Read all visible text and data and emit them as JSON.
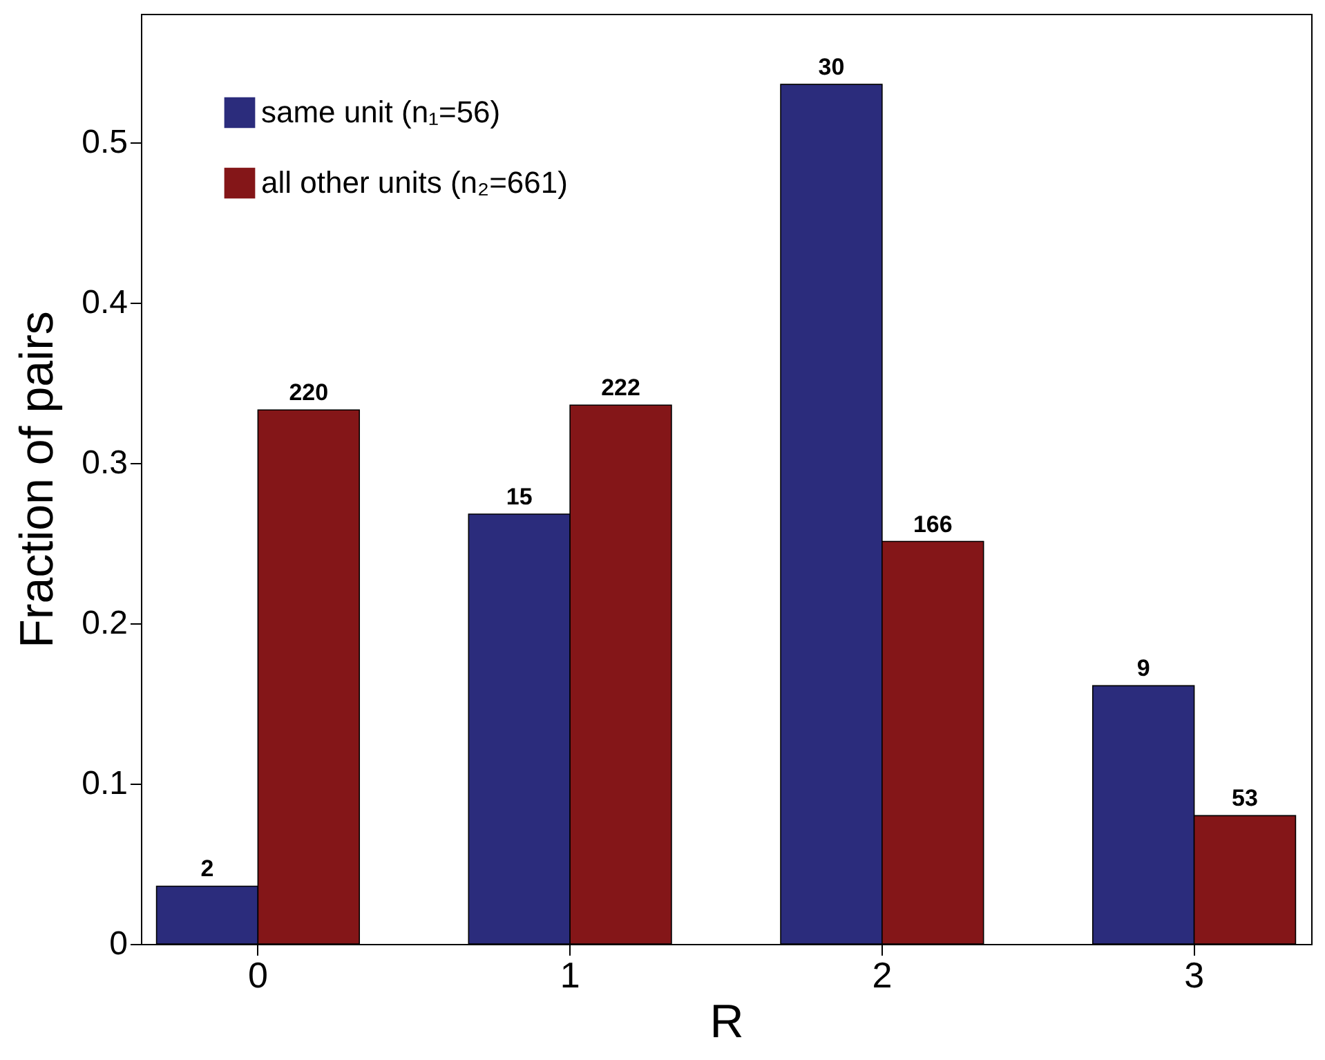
{
  "chart_data": {
    "type": "bar",
    "xlabel": "R",
    "ylabel": "Fraction of pairs",
    "categories": [
      "0",
      "1",
      "2",
      "3"
    ],
    "series": [
      {
        "name": "same unit (n₁=56)",
        "color": "#2b2c7c",
        "values": [
          0.036,
          0.268,
          0.536,
          0.161
        ]
      },
      {
        "name": "all other units (n₂=661)",
        "color": "#841618",
        "values": [
          0.333,
          0.336,
          0.251,
          0.08
        ]
      }
    ],
    "annotations": [
      {
        "text": "2",
        "x": "0",
        "y": 0.036
      },
      {
        "text": "220",
        "x": "0",
        "y": 0.333
      },
      {
        "text": "15",
        "x": "1",
        "y": 0.268
      },
      {
        "text": "222",
        "x": "1",
        "y": 0.336
      },
      {
        "text": "30",
        "x": "2",
        "y": 0.536
      },
      {
        "text": "166",
        "x": "2",
        "y": 0.251
      },
      {
        "text": "9",
        "x": "3",
        "y": 0.161
      },
      {
        "text": "53",
        "x": "3",
        "y": 0.08
      }
    ],
    "ylim": [
      0,
      0.58
    ],
    "yticks": [
      0,
      0.1,
      0.2,
      0.3,
      0.4,
      0.5
    ],
    "grid": false,
    "legend": "top left"
  }
}
